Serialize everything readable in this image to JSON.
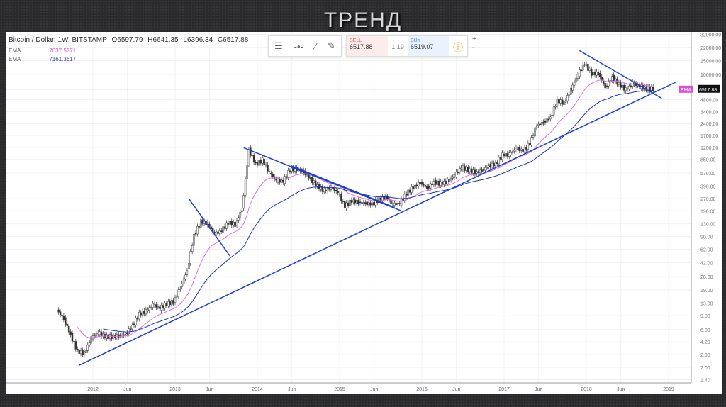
{
  "title": "ТРЕНД",
  "header": {
    "symbol": "Bitcoin / Dollar, 1W, BITSTAMP",
    "open": "O6597.79",
    "high": "H6641.35",
    "low": "L6396.34",
    "close": "C6517.88"
  },
  "indicators": [
    {
      "label": "EMA",
      "value": "7037.5271",
      "color": "#d84fd8"
    },
    {
      "label": "EMA",
      "value": "7161.3617",
      "color": "#2a3fc0"
    }
  ],
  "trade": {
    "sell_label": "SELL",
    "sell_price": "6517.88",
    "spread": "1.19",
    "buy_label": "BUY",
    "buy_price": "6519.07",
    "info_icon": "info-icon",
    "plus": "+",
    "minus": "-"
  },
  "toolbar": {
    "icons": [
      "lines-icon",
      "horizontal-line-icon",
      "trend-line-icon",
      "brush-icon"
    ]
  },
  "price_label": {
    "ema_tag": "EMA",
    "price": "6517.88"
  },
  "colors": {
    "up": "#333333",
    "down": "#333333",
    "ema_fast": "#e06ee0",
    "ema_slow": "#2030c0",
    "trendline": "#1f3fd0",
    "price_tag": "#d84fd8"
  },
  "chart_data": {
    "type": "candlestick",
    "y_scale": "log",
    "ylim": [
      1.4,
      32000
    ],
    "y_ticks": [
      "32000.00",
      "22000.00",
      "15000.00",
      "10000.00",
      "4800.00",
      "3400.00",
      "2400.00",
      "1700.00",
      "1200.00",
      "850.00",
      "570.00",
      "390.00",
      "270.00",
      "190.00",
      "130.00",
      "90.00",
      "62.00",
      "42.00",
      "28.00",
      "19.00",
      "13.00",
      "9.00",
      "6.00",
      "4.20",
      "2.90",
      "2.00",
      "1.40"
    ],
    "x_ticks": [
      {
        "label": "2012",
        "t": 2012.0
      },
      {
        "label": "Jun",
        "t": 2012.42
      },
      {
        "label": "2013",
        "t": 2013.0
      },
      {
        "label": "Jun",
        "t": 2013.42
      },
      {
        "label": "2014",
        "t": 2014.0
      },
      {
        "label": "Jun",
        "t": 2014.42
      },
      {
        "label": "2015",
        "t": 2015.0
      },
      {
        "label": "Jun",
        "t": 2015.42
      },
      {
        "label": "2016",
        "t": 2016.0
      },
      {
        "label": "Jun",
        "t": 2016.42
      },
      {
        "label": "2017",
        "t": 2017.0
      },
      {
        "label": "Jun",
        "t": 2017.42
      },
      {
        "label": "2018",
        "t": 2018.0
      },
      {
        "label": "Jun",
        "t": 2018.42
      },
      {
        "label": "2019",
        "t": 2019.0
      }
    ],
    "start": "2011-08",
    "monthly_close": [
      8.2,
      5.1,
      3.2,
      3.0,
      4.7,
      5.5,
      4.9,
      4.9,
      5.0,
      5.2,
      6.7,
      9.4,
      10.2,
      12.4,
      11.2,
      12.6,
      13.5,
      20.4,
      33.4,
      93,
      139,
      129,
      97,
      106,
      135,
      127,
      198,
      1120,
      732,
      829,
      573,
      457,
      447,
      628,
      640,
      586,
      480,
      387,
      338,
      378,
      320,
      217,
      254,
      244,
      236,
      230,
      263,
      284,
      230,
      236,
      314,
      377,
      430,
      368,
      437,
      416,
      448,
      531,
      673,
      624,
      575,
      609,
      700,
      742,
      963,
      970,
      1190,
      1080,
      1348,
      2300,
      2480,
      2875,
      4700,
      4340,
      6440,
      10000,
      13800,
      10200,
      10300,
      6900,
      9240,
      7500,
      6400,
      7730,
      7030,
      6630,
      6517.88
    ],
    "current_price": 6517.88,
    "trendlines": [
      {
        "from": [
          "2011-11",
          2.13
        ],
        "to": [
          "2019-02",
          7950
        ]
      },
      {
        "from": [
          "2013-03",
          270
        ],
        "to": [
          "2013-09",
          51
        ]
      },
      {
        "from": [
          "2013-11",
          1190
        ],
        "to": [
          "2015-10",
          190
        ]
      },
      {
        "from": [
          "2014-06",
          700
        ],
        "to": [
          "2015-09",
          210
        ]
      },
      {
        "from": [
          "2017-12",
          20000
        ],
        "to": [
          "2018-12",
          5000
        ]
      }
    ]
  }
}
